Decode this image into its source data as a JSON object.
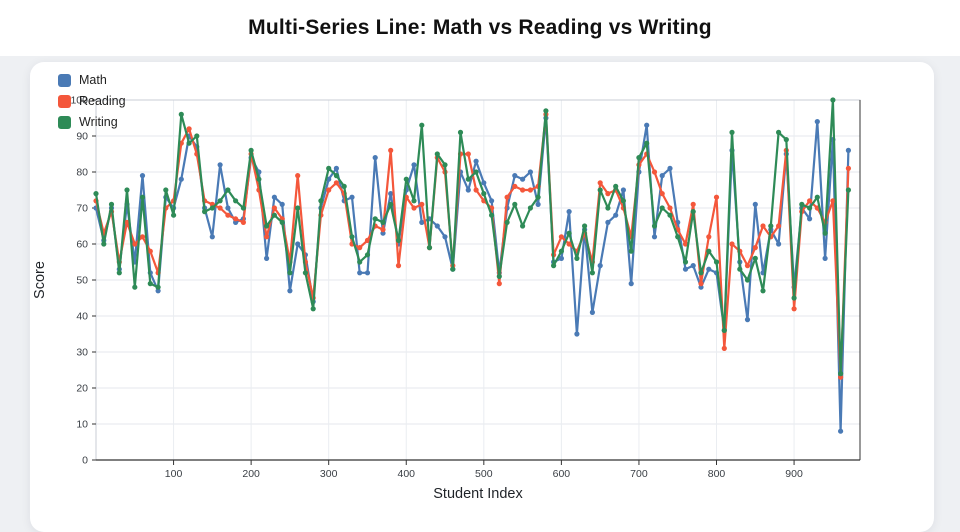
{
  "page": {
    "title": "Multi-Series Line: Math vs Reading vs Writing"
  },
  "chart_data": {
    "type": "line",
    "title": "Multi-Series Line: Math vs Reading vs Writing",
    "xlabel": "Student Index",
    "ylabel": "Score",
    "xlim": [
      0,
      985
    ],
    "ylim": [
      0,
      100
    ],
    "x_ticks": [
      100,
      200,
      300,
      400,
      500,
      600,
      700,
      800,
      900
    ],
    "y_ticks": [
      0,
      10,
      20,
      30,
      40,
      50,
      60,
      70,
      80,
      90,
      100
    ],
    "grid": true,
    "legend_position": "top-left",
    "x": [
      0,
      10,
      20,
      30,
      40,
      50,
      60,
      70,
      80,
      90,
      100,
      110,
      120,
      130,
      140,
      150,
      160,
      170,
      180,
      190,
      200,
      210,
      220,
      230,
      240,
      250,
      260,
      270,
      280,
      290,
      300,
      310,
      320,
      330,
      340,
      350,
      360,
      370,
      380,
      390,
      400,
      410,
      420,
      430,
      440,
      450,
      460,
      470,
      480,
      490,
      500,
      510,
      520,
      530,
      540,
      550,
      560,
      570,
      580,
      590,
      600,
      610,
      620,
      630,
      640,
      650,
      660,
      670,
      680,
      690,
      700,
      710,
      720,
      730,
      740,
      750,
      760,
      770,
      780,
      790,
      800,
      810,
      820,
      830,
      840,
      850,
      860,
      870,
      880,
      890,
      900,
      910,
      920,
      930,
      940,
      950,
      960,
      970
    ],
    "series": [
      {
        "name": "Math",
        "color": "#4a7ab5",
        "values": [
          70,
          61,
          70,
          53,
          71,
          55,
          79,
          52,
          47,
          73,
          70,
          78,
          90,
          87,
          70,
          62,
          82,
          70,
          66,
          67,
          84,
          80,
          56,
          73,
          71,
          47,
          60,
          57,
          44,
          70,
          78,
          81,
          72,
          73,
          52,
          52,
          84,
          63,
          74,
          60,
          75,
          82,
          66,
          67,
          65,
          62,
          53,
          80,
          75,
          83,
          77,
          72,
          52,
          70,
          79,
          78,
          80,
          71,
          95,
          55,
          56,
          69,
          35,
          64,
          41,
          54,
          66,
          68,
          75,
          49,
          80,
          93,
          62,
          79,
          81,
          66,
          53,
          54,
          48,
          53,
          52,
          36,
          86,
          55,
          39,
          71,
          52,
          64,
          60,
          85,
          48,
          70,
          67,
          94,
          56,
          89,
          8,
          86
        ]
      },
      {
        "name": "Reading",
        "color": "#f4573b",
        "values": [
          72,
          63,
          69,
          55,
          66,
          60,
          62,
          58,
          52,
          70,
          72,
          88,
          92,
          85,
          72,
          71,
          70,
          68,
          67,
          66,
          85,
          75,
          62,
          70,
          67,
          55,
          79,
          55,
          45,
          68,
          75,
          77,
          74,
          60,
          59,
          61,
          65,
          64,
          86,
          54,
          73,
          70,
          71,
          59,
          84,
          80,
          54,
          85,
          85,
          75,
          72,
          70,
          49,
          73,
          76,
          75,
          75,
          76,
          96,
          57,
          62,
          60,
          58,
          63,
          55,
          77,
          74,
          75,
          70,
          62,
          82,
          85,
          80,
          74,
          70,
          64,
          60,
          71,
          49,
          62,
          73,
          31,
          60,
          58,
          54,
          59,
          65,
          62,
          65,
          86,
          42,
          69,
          72,
          70,
          66,
          72,
          23,
          81
        ]
      },
      {
        "name": "Writing",
        "color": "#2e8b57",
        "values": [
          74,
          60,
          71,
          52,
          75,
          48,
          73,
          49,
          48,
          75,
          68,
          96,
          88,
          90,
          69,
          70,
          72,
          75,
          72,
          70,
          86,
          78,
          65,
          68,
          66,
          52,
          70,
          52,
          42,
          72,
          81,
          79,
          76,
          62,
          55,
          57,
          67,
          66,
          71,
          61,
          78,
          72,
          93,
          59,
          85,
          82,
          53,
          91,
          78,
          80,
          74,
          68,
          51,
          66,
          71,
          65,
          70,
          73,
          97,
          54,
          58,
          63,
          56,
          65,
          52,
          75,
          70,
          76,
          72,
          58,
          84,
          88,
          65,
          70,
          68,
          62,
          55,
          69,
          52,
          58,
          55,
          36,
          91,
          53,
          50,
          56,
          47,
          65,
          91,
          89,
          45,
          71,
          70,
          73,
          63,
          100,
          24,
          75
        ]
      }
    ]
  }
}
